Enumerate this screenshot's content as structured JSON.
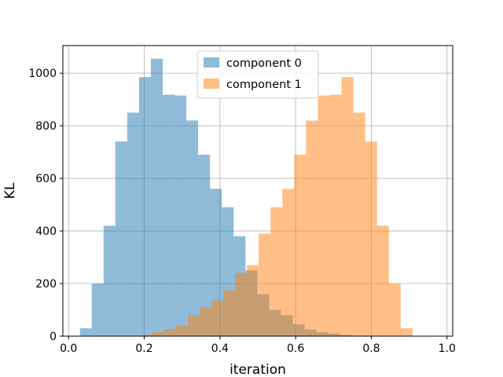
{
  "chart_data": {
    "type": "bar",
    "xlabel": "iteration",
    "ylabel": "KL",
    "xlim": [
      -0.015,
      1.015
    ],
    "ylim": [
      0,
      1105
    ],
    "xticks": [
      0.0,
      0.2,
      0.4,
      0.6,
      0.8,
      1.0
    ],
    "xtick_labels": [
      "0.0",
      "0.2",
      "0.4",
      "0.6",
      "0.8",
      "1.0"
    ],
    "yticks": [
      0,
      200,
      400,
      600,
      800,
      1000
    ],
    "ytick_labels": [
      "0",
      "200",
      "400",
      "600",
      "800",
      "1000"
    ],
    "grid": true,
    "legend_position": "top-center",
    "bin_width": 0.03125,
    "series": [
      {
        "name": "component 0",
        "color": "#1f77b4",
        "opacity": 0.5,
        "bin_start": 0.03,
        "values": [
          30,
          200,
          420,
          740,
          850,
          985,
          1055,
          918,
          915,
          820,
          690,
          560,
          490,
          380,
          250,
          160,
          100,
          80,
          45,
          25,
          15,
          10,
          5,
          2
        ]
      },
      {
        "name": "component 1",
        "color": "#ff7f0e",
        "opacity": 0.5,
        "bin_start": 0.19,
        "values": [
          5,
          15,
          25,
          40,
          80,
          110,
          135,
          175,
          240,
          270,
          390,
          490,
          560,
          690,
          820,
          915,
          918,
          985,
          850,
          740,
          420,
          200,
          30
        ]
      }
    ]
  }
}
